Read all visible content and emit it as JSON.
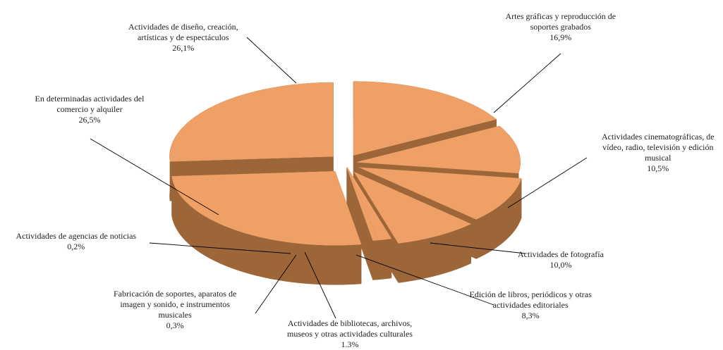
{
  "chart_data": {
    "type": "pie",
    "title": "",
    "legend": "none",
    "colors": {
      "top": "#EFA066",
      "side": "#9C6638",
      "leader": "#000000"
    },
    "slices": [
      {
        "name_lines": [
          "Artes gráficas y reproducción de",
          "soportes grabados"
        ],
        "value": 16.9,
        "value_label": "16,9%"
      },
      {
        "name_lines": [
          "Actividades cinematográficas, de",
          "vídeo, radio, televisión y edición",
          "musical"
        ],
        "value": 10.5,
        "value_label": "10,5%"
      },
      {
        "name_lines": [
          "Actividades de fotografía"
        ],
        "value": 10.0,
        "value_label": "10,0%"
      },
      {
        "name_lines": [
          "Edición de libros, periódicos y otras",
          "actividades editoriales"
        ],
        "value": 8.3,
        "value_label": "8,3%"
      },
      {
        "name_lines": [
          "Actividades de bibliotecas, archivos,",
          "museos y otras actividades culturales"
        ],
        "value": 1.3,
        "value_label": "1.3%"
      },
      {
        "name_lines": [
          "Fabricación de soportes, aparatos de",
          "imagen y sonido, e instrumentos",
          "musicales"
        ],
        "value": 0.3,
        "value_label": "0,3%"
      },
      {
        "name_lines": [
          "Actividades de agencias de noticias"
        ],
        "value": 0.2,
        "value_label": "0,2%"
      },
      {
        "name_lines": [
          "En determinadas actividades del",
          "comercio y alquiler"
        ],
        "value": 26.5,
        "value_label": "26,5%"
      },
      {
        "name_lines": [
          "Actividades de diseño, creación,",
          "artísticas y de espectáculos"
        ],
        "value": 26.1,
        "value_label": "26,1%"
      }
    ]
  }
}
